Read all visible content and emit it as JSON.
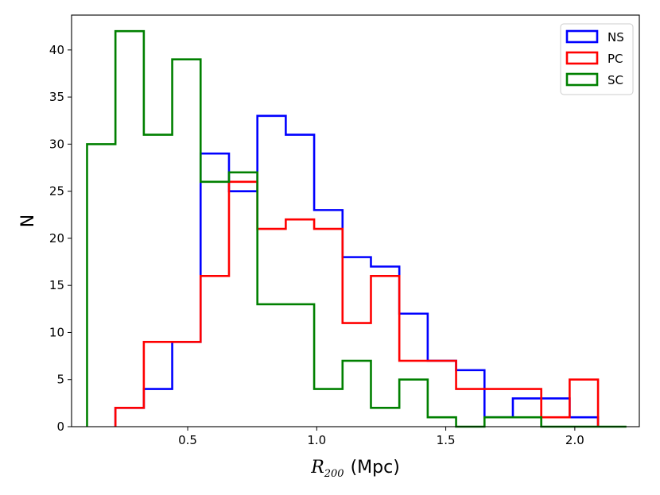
{
  "chart_data": {
    "type": "histogram-step",
    "title": "",
    "xlabel_math": "R",
    "xlabel_sub": "200",
    "xlabel_unit": "(Mpc)",
    "ylabel": "N",
    "xlim": [
      0.05,
      2.25
    ],
    "ylim": [
      0,
      43.7
    ],
    "xticks": [
      0.5,
      1.0,
      1.5,
      2.0
    ],
    "xtick_labels": [
      "0.5",
      "1.0",
      "1.5",
      "2.0"
    ],
    "yticks": [
      0,
      5,
      10,
      15,
      20,
      25,
      30,
      35,
      40
    ],
    "ytick_labels": [
      "0",
      "5",
      "10",
      "15",
      "20",
      "25",
      "30",
      "35",
      "40"
    ],
    "legend_position": "top-right",
    "series": [
      {
        "name": "NS",
        "color": "#0000ff",
        "bin_edges": [
          0.22,
          0.33,
          0.44,
          0.55,
          0.66,
          0.77,
          0.88,
          0.99,
          1.1,
          1.21,
          1.32,
          1.43,
          1.54,
          1.65,
          1.76,
          1.87,
          1.98,
          2.09
        ],
        "counts": [
          2,
          4,
          9,
          29,
          25,
          33,
          31,
          23,
          18,
          17,
          12,
          7,
          6,
          1,
          3,
          3,
          1
        ]
      },
      {
        "name": "PC",
        "color": "#ff0000",
        "bin_edges": [
          0.22,
          0.33,
          0.44,
          0.55,
          0.66,
          0.77,
          0.88,
          0.99,
          1.1,
          1.21,
          1.32,
          1.43,
          1.54,
          1.65,
          1.76,
          1.87,
          1.98,
          2.09
        ],
        "counts": [
          2,
          9,
          9,
          16,
          26,
          21,
          22,
          21,
          11,
          16,
          7,
          7,
          4,
          4,
          4,
          1,
          5
        ]
      },
      {
        "name": "SC",
        "color": "#008000",
        "bin_edges": [
          0.11,
          0.22,
          0.33,
          0.44,
          0.55,
          0.66,
          0.77,
          0.88,
          0.99,
          1.1,
          1.21,
          1.32,
          1.43,
          1.54,
          1.65,
          1.76,
          1.87,
          1.98,
          2.09,
          2.2
        ],
        "counts": [
          30,
          42,
          31,
          39,
          26,
          27,
          13,
          13,
          4,
          7,
          2,
          5,
          1,
          0,
          1,
          1,
          0,
          0,
          0
        ]
      }
    ]
  }
}
